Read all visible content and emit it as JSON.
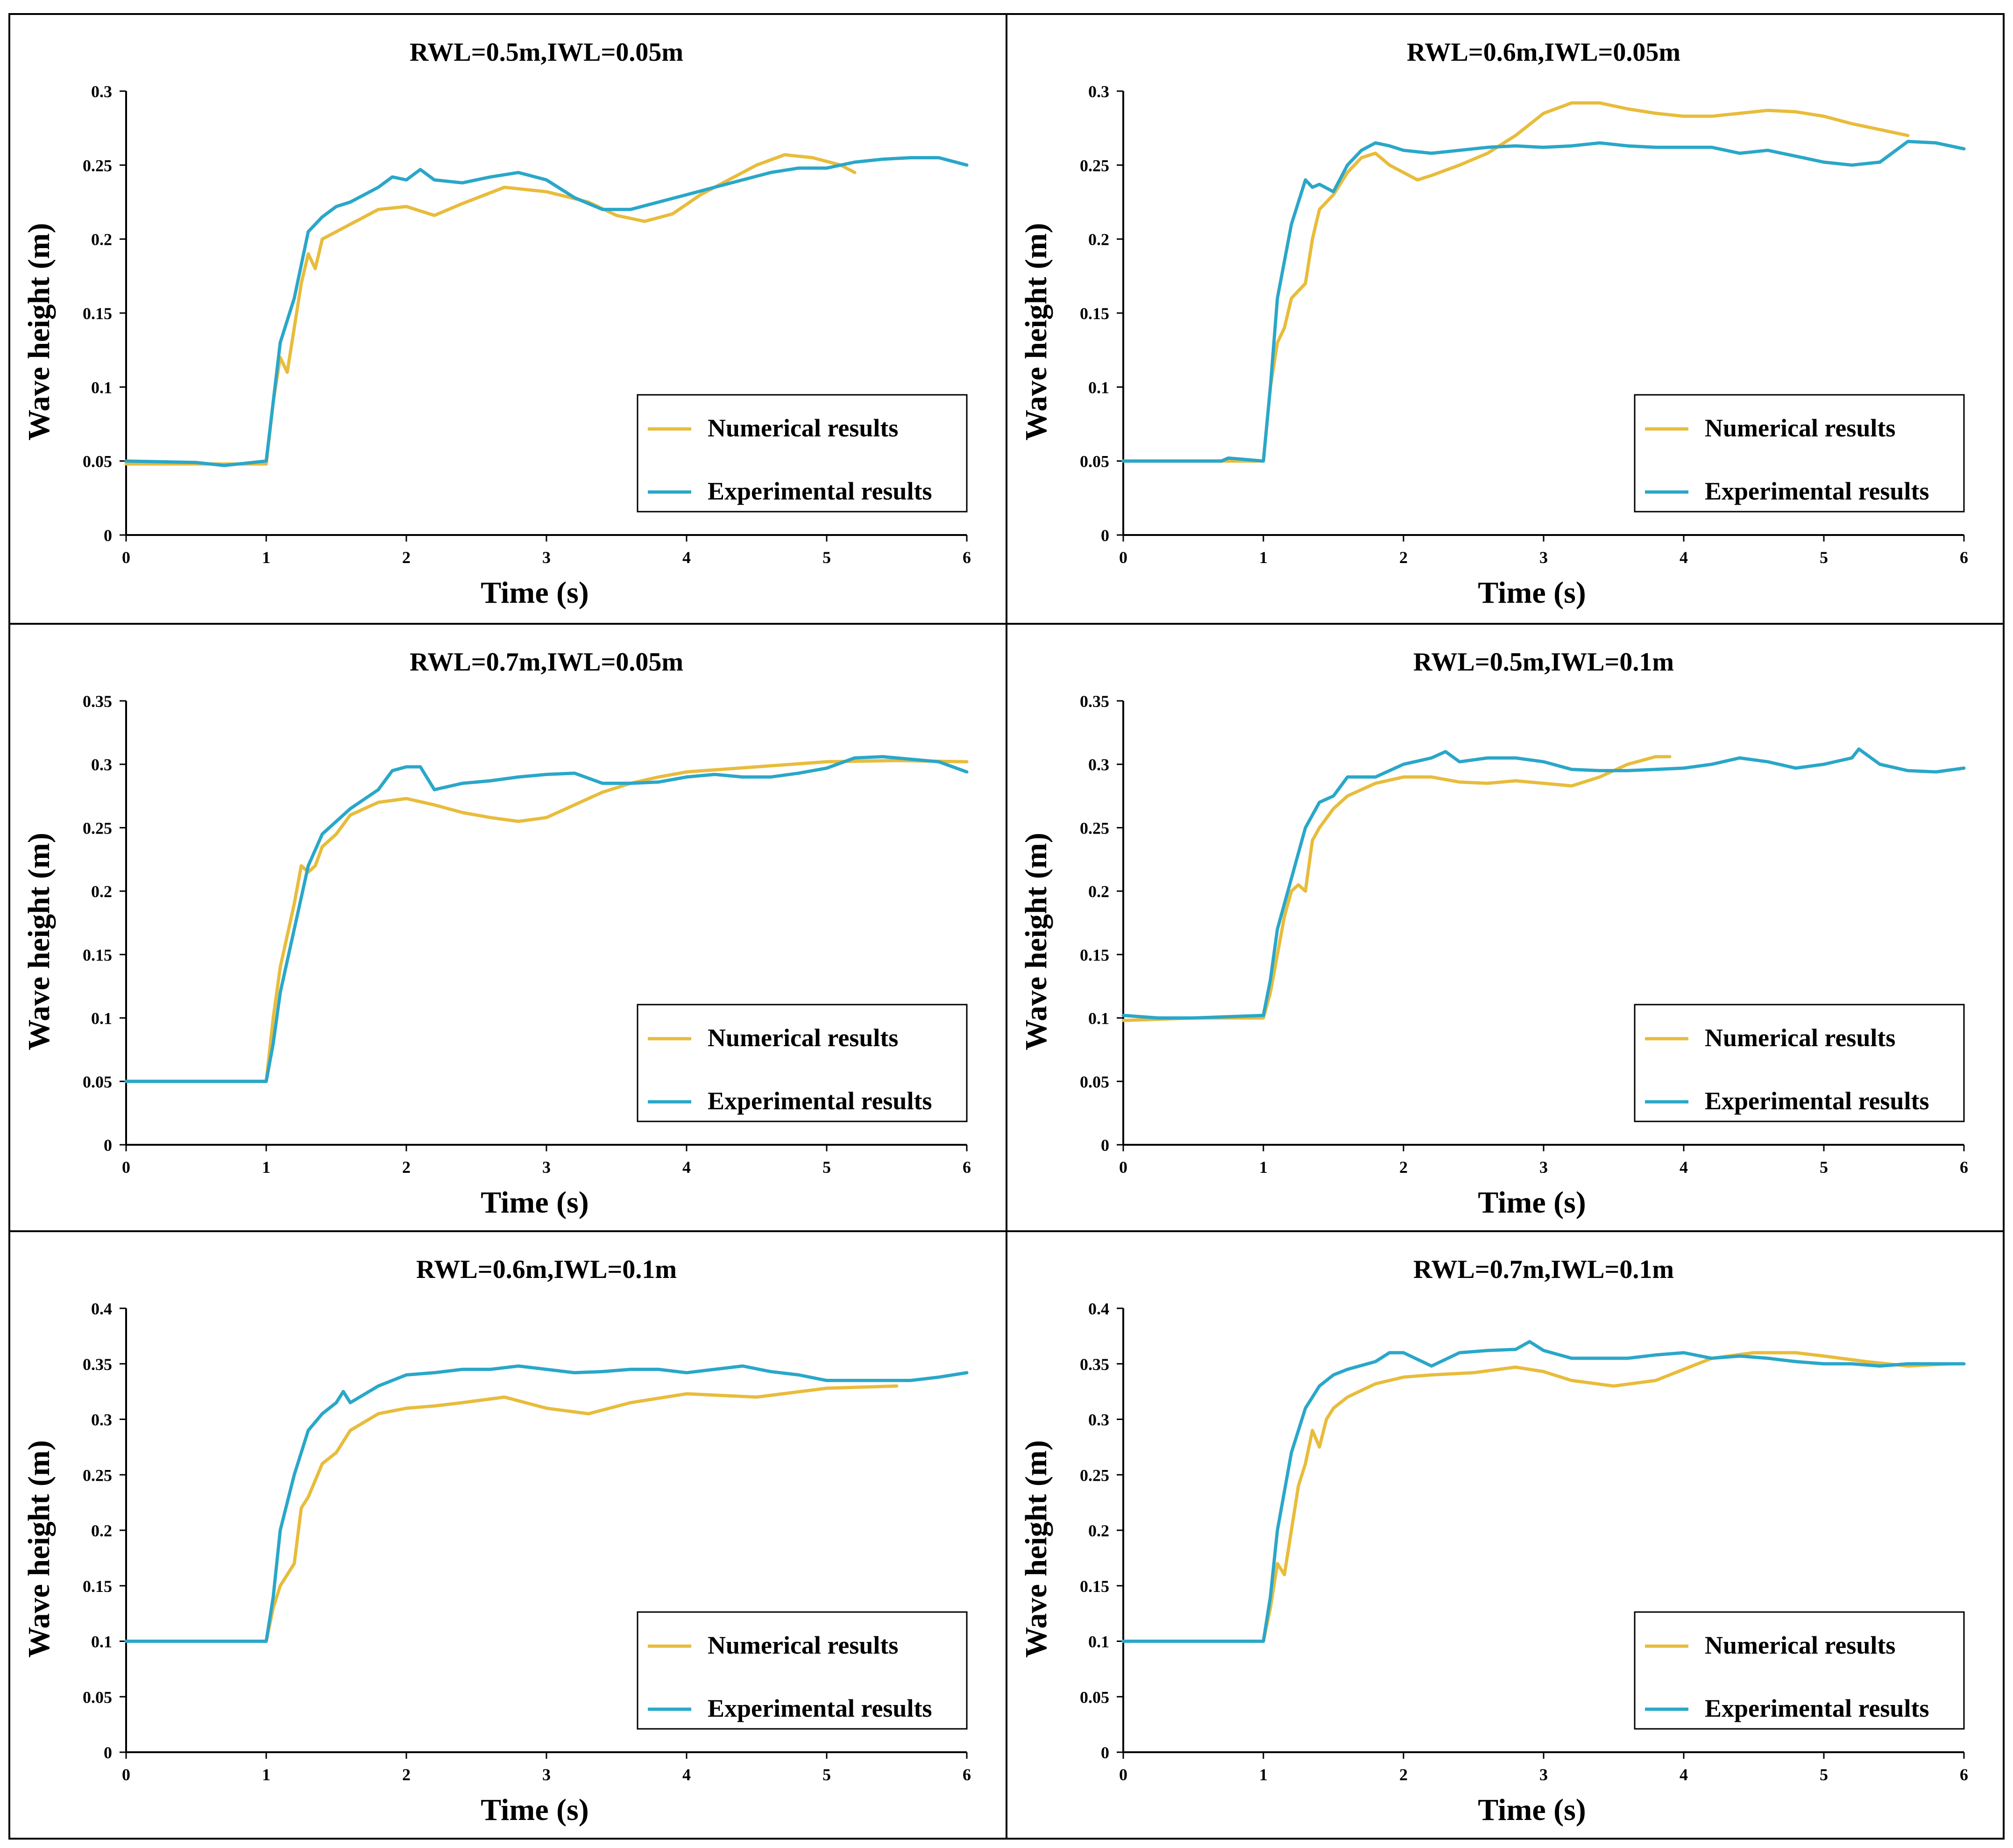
{
  "figure": {
    "colors": {
      "numerical": "#E8BC3C",
      "experimental": "#2AA7C9",
      "frame": "#000000"
    }
  },
  "chart_data": [
    {
      "type": "line",
      "title": "RWL=0.5m,IWL=0.05m",
      "xlabel": "Time (s)",
      "ylabel": "Wave height (m)",
      "xlim": [
        0,
        6
      ],
      "ylim": [
        0,
        0.3
      ],
      "xticks": [
        "0",
        "1",
        "2",
        "3",
        "4",
        "5",
        "6"
      ],
      "yticks": [
        "0",
        "0.05",
        "0.1",
        "0.15",
        "0.2",
        "0.25",
        "0.3"
      ],
      "legend_position": "lower-right",
      "series": [
        {
          "name": "Numerical results",
          "x": [
            0,
            0.5,
            1.0,
            1.05,
            1.1,
            1.15,
            1.2,
            1.25,
            1.3,
            1.35,
            1.4,
            1.5,
            1.6,
            1.8,
            2.0,
            2.2,
            2.4,
            2.7,
            3.0,
            3.3,
            3.5,
            3.7,
            3.9,
            4.1,
            4.3,
            4.5,
            4.7,
            4.9,
            5.1,
            5.2
          ],
          "y": [
            0.048,
            0.048,
            0.048,
            0.09,
            0.12,
            0.11,
            0.14,
            0.17,
            0.19,
            0.18,
            0.2,
            0.205,
            0.21,
            0.22,
            0.222,
            0.216,
            0.224,
            0.235,
            0.232,
            0.225,
            0.216,
            0.212,
            0.217,
            0.23,
            0.24,
            0.25,
            0.257,
            0.255,
            0.25,
            0.245
          ]
        },
        {
          "name": "Experimental results",
          "x": [
            0,
            0.5,
            0.7,
            1.0,
            1.05,
            1.1,
            1.2,
            1.3,
            1.4,
            1.5,
            1.6,
            1.8,
            1.9,
            2.0,
            2.1,
            2.2,
            2.4,
            2.6,
            2.8,
            3.0,
            3.2,
            3.4,
            3.6,
            3.8,
            4.0,
            4.2,
            4.4,
            4.6,
            4.8,
            5.0,
            5.2,
            5.4,
            5.6,
            5.8,
            6.0
          ],
          "y": [
            0.05,
            0.049,
            0.047,
            0.05,
            0.09,
            0.13,
            0.16,
            0.205,
            0.215,
            0.222,
            0.225,
            0.235,
            0.242,
            0.24,
            0.247,
            0.24,
            0.238,
            0.242,
            0.245,
            0.24,
            0.228,
            0.22,
            0.22,
            0.225,
            0.23,
            0.235,
            0.24,
            0.245,
            0.248,
            0.248,
            0.252,
            0.254,
            0.255,
            0.255,
            0.25
          ]
        }
      ]
    },
    {
      "type": "line",
      "title": "RWL=0.6m,IWL=0.05m",
      "xlabel": "Time (s)",
      "ylabel": "Wave height (m)",
      "xlim": [
        0,
        6
      ],
      "ylim": [
        0,
        0.3
      ],
      "xticks": [
        "0",
        "1",
        "2",
        "3",
        "4",
        "5",
        "6"
      ],
      "yticks": [
        "0",
        "0.05",
        "0.1",
        "0.15",
        "0.2",
        "0.25",
        "0.3"
      ],
      "legend_position": "lower-right",
      "series": [
        {
          "name": "Numerical results",
          "x": [
            0,
            0.5,
            1.0,
            1.05,
            1.1,
            1.15,
            1.2,
            1.3,
            1.35,
            1.4,
            1.5,
            1.6,
            1.7,
            1.8,
            1.9,
            2.0,
            2.1,
            2.2,
            2.4,
            2.6,
            2.8,
            3.0,
            3.2,
            3.4,
            3.6,
            3.8,
            4.0,
            4.2,
            4.4,
            4.6,
            4.8,
            5.0,
            5.2,
            5.4,
            5.6
          ],
          "y": [
            0.05,
            0.05,
            0.05,
            0.1,
            0.13,
            0.14,
            0.16,
            0.17,
            0.2,
            0.22,
            0.23,
            0.245,
            0.255,
            0.258,
            0.25,
            0.245,
            0.24,
            0.243,
            0.25,
            0.258,
            0.27,
            0.285,
            0.292,
            0.292,
            0.288,
            0.285,
            0.283,
            0.283,
            0.285,
            0.287,
            0.286,
            0.283,
            0.278,
            0.274,
            0.27
          ]
        },
        {
          "name": "Experimental results",
          "x": [
            0,
            0.5,
            0.7,
            0.75,
            1.0,
            1.05,
            1.1,
            1.2,
            1.3,
            1.35,
            1.4,
            1.5,
            1.6,
            1.7,
            1.8,
            1.9,
            2.0,
            2.2,
            2.4,
            2.6,
            2.8,
            3.0,
            3.2,
            3.4,
            3.6,
            3.8,
            4.0,
            4.2,
            4.4,
            4.6,
            4.8,
            5.0,
            5.2,
            5.4,
            5.6,
            5.8,
            6.0
          ],
          "y": [
            0.05,
            0.05,
            0.05,
            0.052,
            0.05,
            0.1,
            0.16,
            0.21,
            0.24,
            0.235,
            0.237,
            0.232,
            0.25,
            0.26,
            0.265,
            0.263,
            0.26,
            0.258,
            0.26,
            0.262,
            0.263,
            0.262,
            0.263,
            0.265,
            0.263,
            0.262,
            0.262,
            0.262,
            0.258,
            0.26,
            0.256,
            0.252,
            0.25,
            0.252,
            0.266,
            0.265,
            0.261
          ]
        }
      ]
    },
    {
      "type": "line",
      "title": "RWL=0.7m,IWL=0.05m",
      "xlabel": "Time (s)",
      "ylabel": "Wave height (m)",
      "xlim": [
        0,
        6
      ],
      "ylim": [
        0,
        0.35
      ],
      "xticks": [
        "0",
        "1",
        "2",
        "3",
        "4",
        "5",
        "6"
      ],
      "yticks": [
        "0",
        "0.05",
        "0.1",
        "0.15",
        "0.2",
        "0.25",
        "0.3",
        "0.35"
      ],
      "legend_position": "lower-right",
      "series": [
        {
          "name": "Numerical results",
          "x": [
            0,
            0.5,
            0.95,
            1.0,
            1.05,
            1.1,
            1.2,
            1.25,
            1.3,
            1.35,
            1.4,
            1.5,
            1.6,
            1.8,
            2.0,
            2.2,
            2.4,
            2.6,
            2.8,
            3.0,
            3.2,
            3.4,
            3.6,
            3.8,
            4.0,
            4.5,
            5.0,
            5.5,
            6.0
          ],
          "y": [
            0.05,
            0.05,
            0.05,
            0.05,
            0.1,
            0.14,
            0.19,
            0.22,
            0.215,
            0.22,
            0.235,
            0.245,
            0.26,
            0.27,
            0.273,
            0.268,
            0.262,
            0.258,
            0.255,
            0.258,
            0.268,
            0.278,
            0.285,
            0.29,
            0.294,
            0.298,
            0.302,
            0.303,
            0.302
          ]
        },
        {
          "name": "Experimental results",
          "x": [
            0,
            0.5,
            0.95,
            1.0,
            1.05,
            1.1,
            1.2,
            1.3,
            1.4,
            1.5,
            1.6,
            1.8,
            1.9,
            2.0,
            2.1,
            2.2,
            2.4,
            2.6,
            2.8,
            3.0,
            3.2,
            3.4,
            3.6,
            3.8,
            4.0,
            4.2,
            4.4,
            4.6,
            4.8,
            5.0,
            5.2,
            5.4,
            5.6,
            5.8,
            6.0
          ],
          "y": [
            0.05,
            0.05,
            0.05,
            0.05,
            0.08,
            0.12,
            0.17,
            0.22,
            0.245,
            0.255,
            0.265,
            0.28,
            0.295,
            0.298,
            0.298,
            0.28,
            0.285,
            0.287,
            0.29,
            0.292,
            0.293,
            0.285,
            0.285,
            0.286,
            0.29,
            0.292,
            0.29,
            0.29,
            0.293,
            0.297,
            0.305,
            0.306,
            0.304,
            0.302,
            0.294
          ]
        }
      ]
    },
    {
      "type": "line",
      "title": "RWL=0.5m,IWL=0.1m",
      "xlabel": "Time (s)",
      "ylabel": "Wave height (m)",
      "xlim": [
        0,
        6
      ],
      "ylim": [
        0,
        0.35
      ],
      "xticks": [
        "0",
        "1",
        "2",
        "3",
        "4",
        "5",
        "6"
      ],
      "yticks": [
        "0",
        "0.05",
        "0.1",
        "0.15",
        "0.2",
        "0.25",
        "0.3",
        "0.35"
      ],
      "legend_position": "lower-right",
      "series": [
        {
          "name": "Numerical results",
          "x": [
            0,
            0.5,
            1.0,
            1.05,
            1.1,
            1.15,
            1.2,
            1.25,
            1.3,
            1.35,
            1.4,
            1.5,
            1.6,
            1.8,
            2.0,
            2.2,
            2.4,
            2.6,
            2.8,
            3.0,
            3.2,
            3.4,
            3.6,
            3.8,
            3.9
          ],
          "y": [
            0.098,
            0.1,
            0.1,
            0.12,
            0.15,
            0.18,
            0.2,
            0.205,
            0.2,
            0.24,
            0.25,
            0.265,
            0.275,
            0.285,
            0.29,
            0.29,
            0.286,
            0.285,
            0.287,
            0.285,
            0.283,
            0.29,
            0.3,
            0.306,
            0.306
          ]
        },
        {
          "name": "Experimental results",
          "x": [
            0,
            0.25,
            0.5,
            1.0,
            1.05,
            1.1,
            1.2,
            1.3,
            1.4,
            1.5,
            1.6,
            1.8,
            2.0,
            2.2,
            2.3,
            2.4,
            2.6,
            2.8,
            3.0,
            3.2,
            3.4,
            3.6,
            3.8,
            4.0,
            4.2,
            4.4,
            4.6,
            4.8,
            5.0,
            5.2,
            5.25,
            5.4,
            5.6,
            5.8,
            6.0
          ],
          "y": [
            0.102,
            0.1,
            0.1,
            0.102,
            0.13,
            0.17,
            0.21,
            0.25,
            0.27,
            0.275,
            0.29,
            0.29,
            0.3,
            0.305,
            0.31,
            0.302,
            0.305,
            0.305,
            0.302,
            0.296,
            0.295,
            0.295,
            0.296,
            0.297,
            0.3,
            0.305,
            0.302,
            0.297,
            0.3,
            0.305,
            0.312,
            0.3,
            0.295,
            0.294,
            0.297
          ]
        }
      ]
    },
    {
      "type": "line",
      "title": "RWL=0.6m,IWL=0.1m",
      "xlabel": "Time (s)",
      "ylabel": "Wave height (m)",
      "xlim": [
        0,
        6
      ],
      "ylim": [
        0,
        0.4
      ],
      "xticks": [
        "0",
        "1",
        "2",
        "3",
        "4",
        "5",
        "6"
      ],
      "yticks": [
        "0",
        "0.05",
        "0.1",
        "0.15",
        "0.2",
        "0.25",
        "0.3",
        "0.35",
        "0.4"
      ],
      "legend_position": "lower-right",
      "series": [
        {
          "name": "Numerical results",
          "x": [
            0,
            0.5,
            0.95,
            1.0,
            1.05,
            1.1,
            1.2,
            1.25,
            1.3,
            1.4,
            1.5,
            1.6,
            1.8,
            2.0,
            2.2,
            2.4,
            2.7,
            3.0,
            3.3,
            3.6,
            4.0,
            4.5,
            5.0,
            5.5
          ],
          "y": [
            0.1,
            0.1,
            0.1,
            0.1,
            0.13,
            0.15,
            0.17,
            0.22,
            0.23,
            0.26,
            0.27,
            0.29,
            0.305,
            0.31,
            0.312,
            0.315,
            0.32,
            0.31,
            0.305,
            0.315,
            0.323,
            0.32,
            0.328,
            0.33
          ]
        },
        {
          "name": "Experimental results",
          "x": [
            0,
            0.5,
            0.95,
            1.0,
            1.05,
            1.1,
            1.2,
            1.3,
            1.4,
            1.5,
            1.55,
            1.6,
            1.8,
            2.0,
            2.2,
            2.4,
            2.6,
            2.8,
            3.0,
            3.2,
            3.4,
            3.6,
            3.8,
            4.0,
            4.2,
            4.4,
            4.6,
            4.8,
            5.0,
            5.2,
            5.4,
            5.6,
            5.8,
            6.0
          ],
          "y": [
            0.1,
            0.1,
            0.1,
            0.1,
            0.14,
            0.2,
            0.25,
            0.29,
            0.305,
            0.315,
            0.325,
            0.315,
            0.33,
            0.34,
            0.342,
            0.345,
            0.345,
            0.348,
            0.345,
            0.342,
            0.343,
            0.345,
            0.345,
            0.342,
            0.345,
            0.348,
            0.343,
            0.34,
            0.335,
            0.335,
            0.335,
            0.335,
            0.338,
            0.342
          ]
        }
      ]
    },
    {
      "type": "line",
      "title": "RWL=0.7m,IWL=0.1m",
      "xlabel": "Time (s)",
      "ylabel": "Wave height (m)",
      "xlim": [
        0,
        6
      ],
      "ylim": [
        0,
        0.4
      ],
      "xticks": [
        "0",
        "1",
        "2",
        "3",
        "4",
        "5",
        "6"
      ],
      "yticks": [
        "0",
        "0.05",
        "0.1",
        "0.15",
        "0.2",
        "0.25",
        "0.3",
        "0.35",
        "0.4"
      ],
      "legend_position": "lower-right",
      "series": [
        {
          "name": "Numerical results",
          "x": [
            0,
            0.5,
            1.0,
            1.05,
            1.1,
            1.15,
            1.2,
            1.25,
            1.3,
            1.35,
            1.4,
            1.45,
            1.5,
            1.6,
            1.8,
            2.0,
            2.2,
            2.5,
            2.8,
            3.0,
            3.2,
            3.5,
            3.8,
            4.0,
            4.2,
            4.5,
            4.8,
            5.0,
            5.3,
            5.6,
            5.9
          ],
          "y": [
            0.1,
            0.1,
            0.1,
            0.13,
            0.17,
            0.16,
            0.2,
            0.24,
            0.26,
            0.29,
            0.275,
            0.3,
            0.31,
            0.32,
            0.332,
            0.338,
            0.34,
            0.342,
            0.347,
            0.343,
            0.335,
            0.33,
            0.335,
            0.345,
            0.355,
            0.36,
            0.36,
            0.357,
            0.352,
            0.348,
            0.35
          ]
        },
        {
          "name": "Experimental results",
          "x": [
            0,
            0.5,
            1.0,
            1.05,
            1.1,
            1.2,
            1.3,
            1.4,
            1.5,
            1.6,
            1.8,
            1.9,
            2.0,
            2.2,
            2.4,
            2.6,
            2.8,
            2.9,
            3.0,
            3.2,
            3.4,
            3.6,
            3.8,
            4.0,
            4.2,
            4.4,
            4.6,
            4.8,
            5.0,
            5.2,
            5.4,
            5.6,
            5.8,
            6.0
          ],
          "y": [
            0.1,
            0.1,
            0.1,
            0.14,
            0.2,
            0.27,
            0.31,
            0.33,
            0.34,
            0.345,
            0.352,
            0.36,
            0.36,
            0.348,
            0.36,
            0.362,
            0.363,
            0.37,
            0.362,
            0.355,
            0.355,
            0.355,
            0.358,
            0.36,
            0.355,
            0.357,
            0.355,
            0.352,
            0.35,
            0.35,
            0.348,
            0.35,
            0.35,
            0.35
          ]
        }
      ]
    }
  ]
}
